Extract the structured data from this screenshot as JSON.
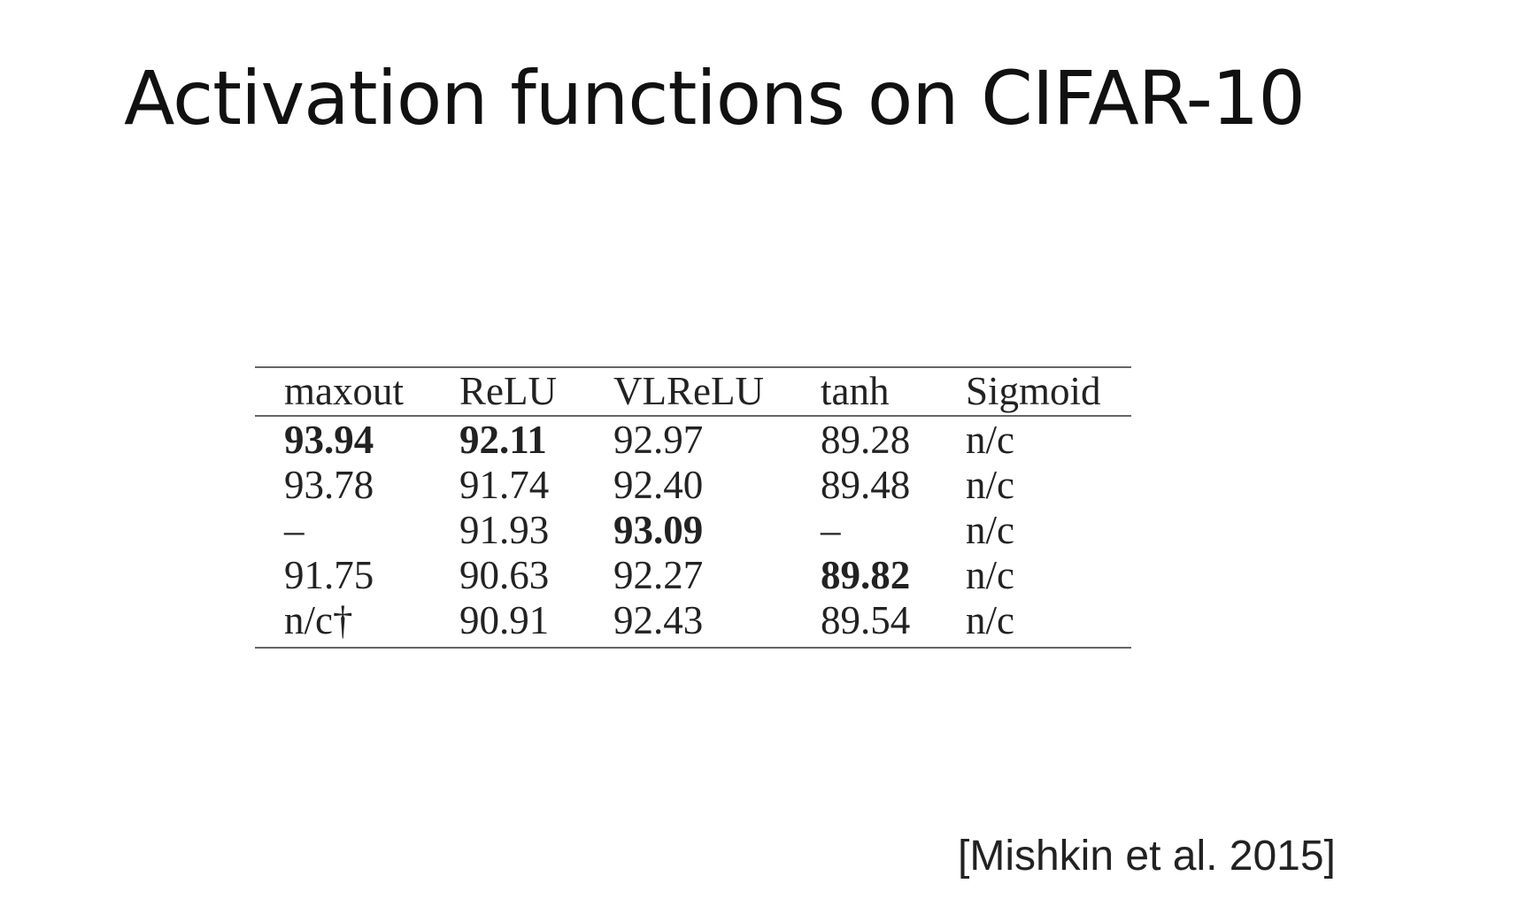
{
  "title": "Activation functions on CIFAR-10",
  "table": {
    "header": [
      "maxout",
      "ReLU",
      "VLReLU",
      "tanh",
      "Sigmoid"
    ],
    "rows": [
      [
        "93.94",
        "92.11",
        "92.97",
        "89.28",
        "n/c"
      ],
      [
        "93.78",
        "91.74",
        "92.40",
        "89.48",
        "n/c"
      ],
      [
        "–",
        "91.93",
        "93.09",
        "–",
        "n/c"
      ],
      [
        "91.75",
        "90.63",
        "92.27",
        "89.82",
        "n/c"
      ],
      [
        "n/c†",
        "90.91",
        "92.43",
        "89.54",
        "n/c"
      ]
    ],
    "bold_cells": [
      [
        0,
        0
      ],
      [
        0,
        1
      ],
      [
        2,
        2
      ],
      [
        3,
        3
      ]
    ]
  },
  "citation": "[Mishkin et al. 2015]"
}
